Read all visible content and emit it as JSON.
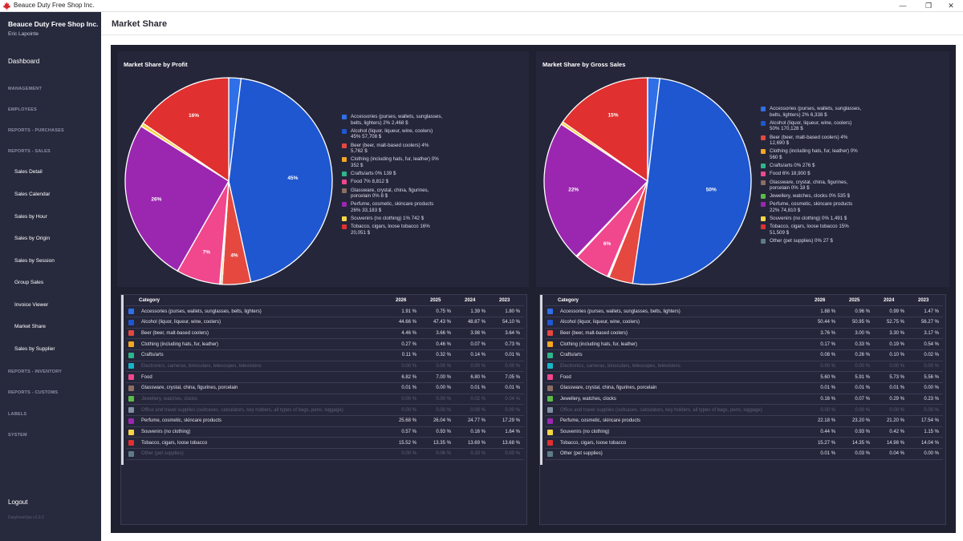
{
  "window": {
    "title": "Beauce Duty Free Shop Inc.",
    "minimize": "—",
    "restore": "❐",
    "close": "✕"
  },
  "sidebar": {
    "company": "Beauce Duty Free Shop Inc.",
    "user": "Eric Lapointe",
    "dashboard": "Dashboard",
    "management": "MANAGEMENT",
    "employees": "EMPLOYEES",
    "reports_purchases": "REPORTS - PURCHASES",
    "reports_sales": "REPORTS - SALES",
    "sales_items": [
      "Sales Detail",
      "Sales Calendar",
      "Sales by Hour",
      "Sales by Origin",
      "Sales by Session",
      "Group Sales",
      "Invoice Viewer",
      "Market Share",
      "Sales by Supplier"
    ],
    "reports_inventory": "REPORTS - INVENTORY",
    "reports_customs": "REPORTS - CUSTOMS",
    "labels": "LABELS",
    "system": "SYSTEM",
    "logout": "Logout",
    "version": "DutyFreeOps v1.0.2"
  },
  "header": {
    "title": "Market Share"
  },
  "colors": {
    "Accessories": "#2f6fe8",
    "Alcohol": "#1f57d0",
    "Beer": "#e5483f",
    "Clothing": "#f5a623",
    "Crafts": "#2fb58a",
    "Electronics": "#16b5c8",
    "Food": "#f0478d",
    "Glassware": "#8d6e63",
    "Jewellery": "#5cba47",
    "Office": "#7e8fa3",
    "Perfume": "#9b27b0",
    "Souvenirs": "#f5d547",
    "Tobacco": "#e03030",
    "Other": "#5f7c86"
  },
  "chart_data": [
    {
      "type": "pie",
      "title": "Market Share by Profit",
      "slices": [
        {
          "key": "Accessories",
          "value": 1.91,
          "label": "",
          "legend1": "Accessories (purses, wallets, sunglasses,",
          "legend2": "belts, lighters)  2%  2,468 $"
        },
        {
          "key": "Alcohol",
          "value": 44.66,
          "label": "45%",
          "legend1": "Alcohol (liquor, liqueur, wine, coolers)",
          "legend2": "45%  57,708 $"
        },
        {
          "key": "Beer",
          "value": 4.46,
          "label": "4%",
          "legend1": "Beer (beer, malt-based coolers)  4%",
          "legend2": "5,762 $"
        },
        {
          "key": "Clothing",
          "value": 0.27,
          "label": "",
          "legend1": "Clothing (including hats, fur, leather)  0%",
          "legend2": "352 $"
        },
        {
          "key": "Crafts",
          "value": 0.11,
          "label": "",
          "legend1": "Crafts/arts  0%  139 $",
          "legend2": ""
        },
        {
          "key": "Food",
          "value": 6.82,
          "label": "7%",
          "legend1": "Food  7%  8,812 $",
          "legend2": ""
        },
        {
          "key": "Glassware",
          "value": 0.01,
          "label": "",
          "legend1": "Glassware, crystal, china, figurines,",
          "legend2": "porcelain  0%  8 $"
        },
        {
          "key": "Perfume",
          "value": 25.68,
          "label": "26%",
          "legend1": "Perfume, cosmetic, skincare products",
          "legend2": "26%  33,183 $"
        },
        {
          "key": "Souvenirs",
          "value": 0.57,
          "label": "",
          "legend1": "Souvenirs (no clothing)  1%  742 $",
          "legend2": ""
        },
        {
          "key": "Tobacco",
          "value": 15.52,
          "label": "16%",
          "legend1": "Tobacco, cigars, loose tobacco  16%",
          "legend2": "20,051 $"
        }
      ]
    },
    {
      "type": "pie",
      "title": "Market Share by Gross Sales",
      "slices": [
        {
          "key": "Accessories",
          "value": 1.88,
          "label": "",
          "legend1": "Accessories (purses, wallets, sunglasses,",
          "legend2": "belts, lighters)  2%  6,338 $"
        },
        {
          "key": "Alcohol",
          "value": 50.44,
          "label": "50%",
          "legend1": "Alcohol (liquor, liqueur, wine, coolers)",
          "legend2": "50%  170,128 $"
        },
        {
          "key": "Beer",
          "value": 3.76,
          "label": "",
          "legend1": "Beer (beer, malt-based coolers)  4%",
          "legend2": "12,690 $"
        },
        {
          "key": "Clothing",
          "value": 0.17,
          "label": "",
          "legend1": "Clothing (including hats, fur, leather)  0%",
          "legend2": "560 $"
        },
        {
          "key": "Crafts",
          "value": 0.08,
          "label": "",
          "legend1": "Crafts/arts  0%  276 $",
          "legend2": ""
        },
        {
          "key": "Food",
          "value": 5.6,
          "label": "6%",
          "legend1": "Food  6%  18,900 $",
          "legend2": ""
        },
        {
          "key": "Glassware",
          "value": 0.01,
          "label": "",
          "legend1": "Glassware, crystal, china, figurines,",
          "legend2": "porcelain  0%  18 $"
        },
        {
          "key": "Jewellery",
          "value": 0.16,
          "label": "",
          "legend1": "Jewellery, watches, clocks  0%  535 $",
          "legend2": ""
        },
        {
          "key": "Perfume",
          "value": 22.18,
          "label": "22%",
          "legend1": "Perfume, cosmetic, skincare products",
          "legend2": "22%  74,810 $"
        },
        {
          "key": "Souvenirs",
          "value": 0.44,
          "label": "",
          "legend1": "Souvenirs (no clothing)  0%  1,491 $",
          "legend2": ""
        },
        {
          "key": "Tobacco",
          "value": 15.27,
          "label": "15%",
          "legend1": "Tobacco, cigars, loose tobacco  15%",
          "legend2": "51,509 $"
        },
        {
          "key": "Other",
          "value": 0.01,
          "label": "",
          "legend1": "Other (pet supplies)  0%  27 $",
          "legend2": ""
        }
      ]
    }
  ],
  "tables": [
    {
      "headers": [
        "Category",
        "2026",
        "2025",
        "2024",
        "2023"
      ],
      "rows": [
        {
          "key": "Accessories",
          "name": "Accessories (purses, wallets, sunglasses, belts, lighters)",
          "v": [
            "1.91 %",
            "0.75 %",
            "1.39 %",
            "1.80 %"
          ],
          "inactive": false
        },
        {
          "key": "Alcohol",
          "name": "Alcohol (liquor, liqueur, wine, coolers)",
          "v": [
            "44.66 %",
            "47.43 %",
            "48.87 %",
            "54.10 %"
          ],
          "inactive": false
        },
        {
          "key": "Beer",
          "name": "Beer (beer, malt-based coolers)",
          "v": [
            "4.46 %",
            "3.66 %",
            "3.98 %",
            "3.64 %"
          ],
          "inactive": false
        },
        {
          "key": "Clothing",
          "name": "Clothing (including hats, fur, leather)",
          "v": [
            "0.27 %",
            "0.46 %",
            "0.07 %",
            "0.73 %"
          ],
          "inactive": false
        },
        {
          "key": "Crafts",
          "name": "Crafts/arts",
          "v": [
            "0.11 %",
            "0.32 %",
            "0.14 %",
            "0.01 %"
          ],
          "inactive": false
        },
        {
          "key": "Electronics",
          "name": "Electronics, cameras, binoculars, telescopes, televisions",
          "v": [
            "0.00 %",
            "0.00 %",
            "0.00 %",
            "0.00 %"
          ],
          "inactive": true
        },
        {
          "key": "Food",
          "name": "Food",
          "v": [
            "6.82 %",
            "7.00 %",
            "6.80 %",
            "7.05 %"
          ],
          "inactive": false
        },
        {
          "key": "Glassware",
          "name": "Glassware, crystal, china, figurines, porcelain",
          "v": [
            "0.01 %",
            "0.00 %",
            "0.01 %",
            "0.01 %"
          ],
          "inactive": false
        },
        {
          "key": "Jewellery",
          "name": "Jewellery, watches, clocks",
          "v": [
            "0.00 %",
            "0.00 %",
            "0.02 %",
            "0.04 %"
          ],
          "inactive": true
        },
        {
          "key": "Office",
          "name": "Office and travel supplies (suitcases, calculators, key holders, all types of bags, pens, luggage)",
          "v": [
            "0.00 %",
            "0.00 %",
            "0.00 %",
            "0.00 %"
          ],
          "inactive": true
        },
        {
          "key": "Perfume",
          "name": "Perfume, cosmetic, skincare products",
          "v": [
            "25.68 %",
            "26.04 %",
            "24.77 %",
            "17.29 %"
          ],
          "inactive": false
        },
        {
          "key": "Souvenirs",
          "name": "Souvenirs (no clothing)",
          "v": [
            "0.57 %",
            "0.93 %",
            "0.16 %",
            "1.64 %"
          ],
          "inactive": false
        },
        {
          "key": "Tobacco",
          "name": "Tobacco, cigars, loose tobacco",
          "v": [
            "15.52 %",
            "13.35 %",
            "13.69 %",
            "13.68 %"
          ],
          "inactive": false
        },
        {
          "key": "Other",
          "name": "Other (pet supplies)",
          "v": [
            "0.00 %",
            "0.06 %",
            "0.10 %",
            "0.00 %"
          ],
          "inactive": true
        }
      ]
    },
    {
      "headers": [
        "Category",
        "2026",
        "2025",
        "2024",
        "2023"
      ],
      "rows": [
        {
          "key": "Accessories",
          "name": "Accessories (purses, wallets, sunglasses, belts, lighters)",
          "v": [
            "1.88 %",
            "0.96 %",
            "0.99 %",
            "1.47 %"
          ],
          "inactive": false
        },
        {
          "key": "Alcohol",
          "name": "Alcohol (liquor, liqueur, wine, coolers)",
          "v": [
            "50.44 %",
            "50.95 %",
            "52.75 %",
            "56.27 %"
          ],
          "inactive": false
        },
        {
          "key": "Beer",
          "name": "Beer (beer, malt-based coolers)",
          "v": [
            "3.76 %",
            "3.00 %",
            "3.30 %",
            "3.17 %"
          ],
          "inactive": false
        },
        {
          "key": "Clothing",
          "name": "Clothing (including hats, fur, leather)",
          "v": [
            "0.17 %",
            "0.33 %",
            "0.19 %",
            "0.54 %"
          ],
          "inactive": false
        },
        {
          "key": "Crafts",
          "name": "Crafts/arts",
          "v": [
            "0.08 %",
            "0.26 %",
            "0.10 %",
            "0.02 %"
          ],
          "inactive": false
        },
        {
          "key": "Electronics",
          "name": "Electronics, cameras, binoculars, telescopes, televisions",
          "v": [
            "0.00 %",
            "0.00 %",
            "0.00 %",
            "0.00 %"
          ],
          "inactive": true
        },
        {
          "key": "Food",
          "name": "Food",
          "v": [
            "5.60 %",
            "5.91 %",
            "5.73 %",
            "5.56 %"
          ],
          "inactive": false
        },
        {
          "key": "Glassware",
          "name": "Glassware, crystal, china, figurines, porcelain",
          "v": [
            "0.01 %",
            "0.01 %",
            "0.01 %",
            "0.00 %"
          ],
          "inactive": false
        },
        {
          "key": "Jewellery",
          "name": "Jewellery, watches, clocks",
          "v": [
            "0.16 %",
            "0.07 %",
            "0.29 %",
            "0.23 %"
          ],
          "inactive": false
        },
        {
          "key": "Office",
          "name": "Office and travel supplies (suitcases, calculators, key holders, all types of bags, pens, luggage)",
          "v": [
            "0.00 %",
            "0.00 %",
            "0.00 %",
            "0.00 %"
          ],
          "inactive": true
        },
        {
          "key": "Perfume",
          "name": "Perfume, cosmetic, skincare products",
          "v": [
            "22.18 %",
            "23.20 %",
            "21.20 %",
            "17.54 %"
          ],
          "inactive": false
        },
        {
          "key": "Souvenirs",
          "name": "Souvenirs (no clothing)",
          "v": [
            "0.44 %",
            "0.93 %",
            "0.42 %",
            "1.15 %"
          ],
          "inactive": false
        },
        {
          "key": "Tobacco",
          "name": "Tobacco, cigars, loose tobacco",
          "v": [
            "15.27 %",
            "14.35 %",
            "14.98 %",
            "14.04 %"
          ],
          "inactive": false
        },
        {
          "key": "Other",
          "name": "Other (pet supplies)",
          "v": [
            "0.01 %",
            "0.03 %",
            "0.04 %",
            "0.00 %"
          ],
          "inactive": false
        }
      ]
    }
  ]
}
